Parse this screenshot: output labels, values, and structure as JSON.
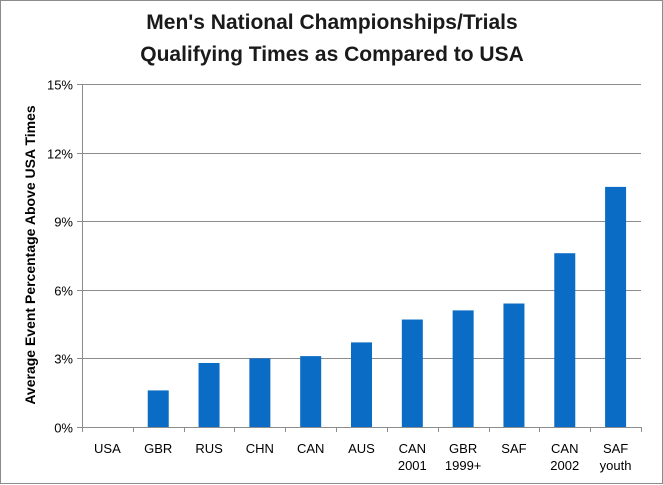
{
  "chart_data": {
    "type": "bar",
    "title_lines": [
      "Men's National Championships/Trials",
      "Qualifying Times as Compared to USA"
    ],
    "xlabel": "",
    "ylabel": "Average Event Percentage Above USA Times",
    "categories": [
      [
        "USA"
      ],
      [
        "GBR"
      ],
      [
        "RUS"
      ],
      [
        "CHN"
      ],
      [
        "CAN"
      ],
      [
        "AUS"
      ],
      [
        "CAN",
        "2001"
      ],
      [
        "GBR",
        "1999+"
      ],
      [
        "SAF"
      ],
      [
        "CAN",
        "2002"
      ],
      [
        "SAF",
        "youth"
      ]
    ],
    "values": [
      0,
      1.6,
      2.8,
      3.0,
      3.1,
      3.7,
      4.7,
      5.1,
      5.4,
      7.6,
      10.5
    ],
    "ylim": [
      0,
      15
    ],
    "yticks": [
      0,
      3,
      6,
      9,
      12,
      15
    ],
    "ytick_labels": [
      "0%",
      "3%",
      "6%",
      "9%",
      "12%",
      "15%"
    ],
    "grid": true,
    "legend": "none",
    "colors": {
      "bar": "#0a6cc4",
      "grid": "#8c8c8c",
      "axis": "#8c8c8c"
    }
  }
}
